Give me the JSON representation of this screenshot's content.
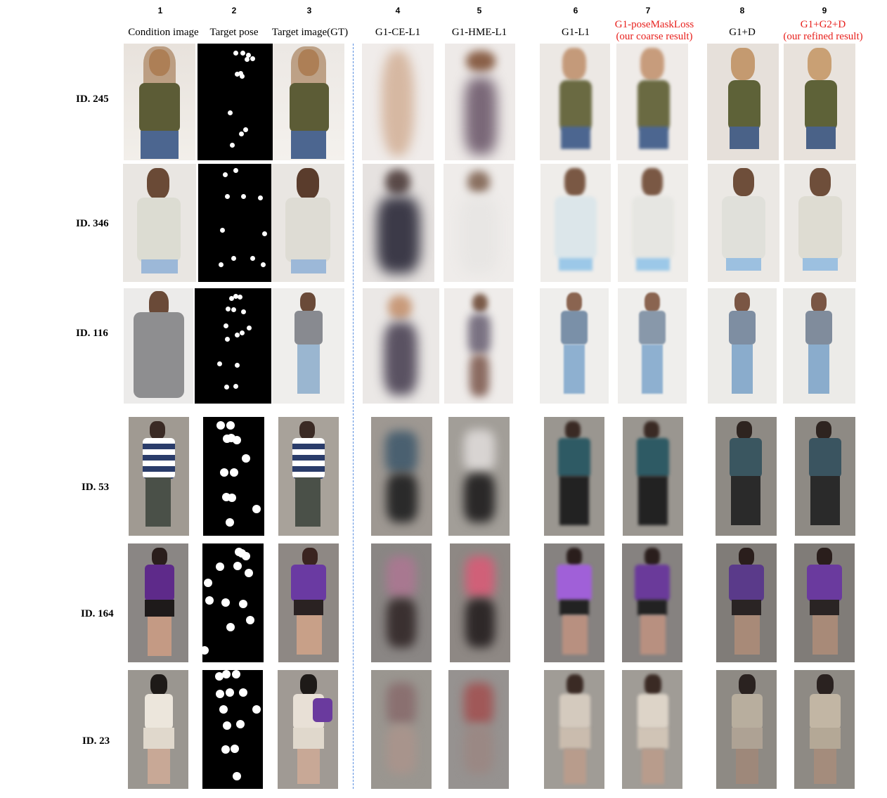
{
  "columns": [
    {
      "num": "1",
      "label": "Condition image",
      "label2": "",
      "red": false
    },
    {
      "num": "2",
      "label": "Target pose",
      "label2": "",
      "red": false
    },
    {
      "num": "3",
      "label": "Target image(GT)",
      "label2": "",
      "red": false
    },
    {
      "num": "4",
      "label": "G1-CE-L1",
      "label2": "",
      "red": false
    },
    {
      "num": "5",
      "label": "G1-HME-L1",
      "label2": "",
      "red": false
    },
    {
      "num": "6",
      "label": "G1-L1",
      "label2": "",
      "red": false
    },
    {
      "num": "7",
      "label": "G1-poseMaskLoss",
      "label2": "(our coarse result)",
      "red": true
    },
    {
      "num": "8",
      "label": "G1+D",
      "label2": "",
      "red": false
    },
    {
      "num": "9",
      "label": "G1+G2+D",
      "label2": "(our refined result)",
      "red": true
    }
  ],
  "rows": [
    {
      "id": "ID. 245"
    },
    {
      "id": "ID. 346"
    },
    {
      "id": "ID. 116"
    },
    {
      "id": "ID. 53"
    },
    {
      "id": "ID. 164"
    },
    {
      "id": "ID. 23"
    }
  ],
  "colors": {
    "red_label": "#e8201c",
    "divider": "#5a8fe0",
    "pose_bg": "#000000"
  }
}
